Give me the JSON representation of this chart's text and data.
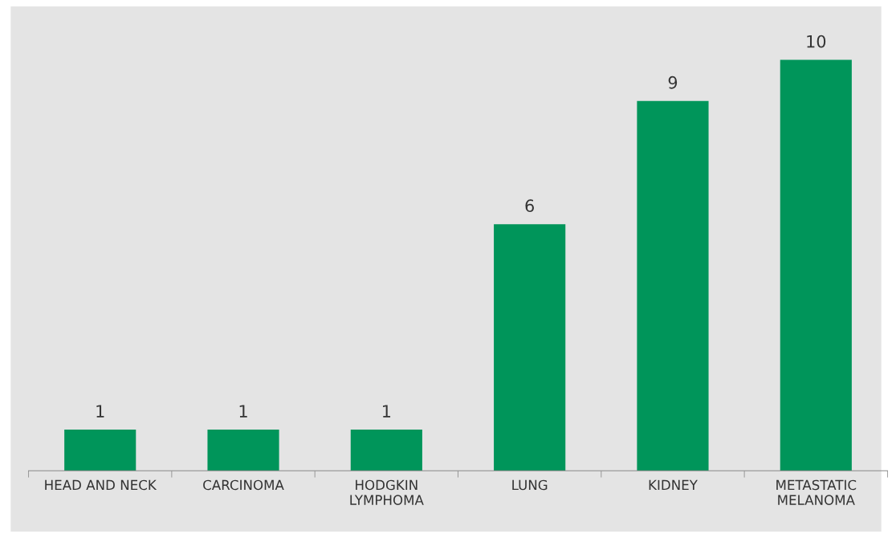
{
  "chart_data": {
    "type": "bar",
    "categories": [
      "HEAD AND NECK",
      "CARCINOMA",
      "HODGKIN\nLYMPHOMA",
      "LUNG",
      "KIDNEY",
      "METASTATIC\nMELANOMA"
    ],
    "values": [
      1,
      1,
      1,
      6,
      9,
      10
    ],
    "color": "#00955a",
    "data_labels": true,
    "grid": false,
    "legend": false
  }
}
